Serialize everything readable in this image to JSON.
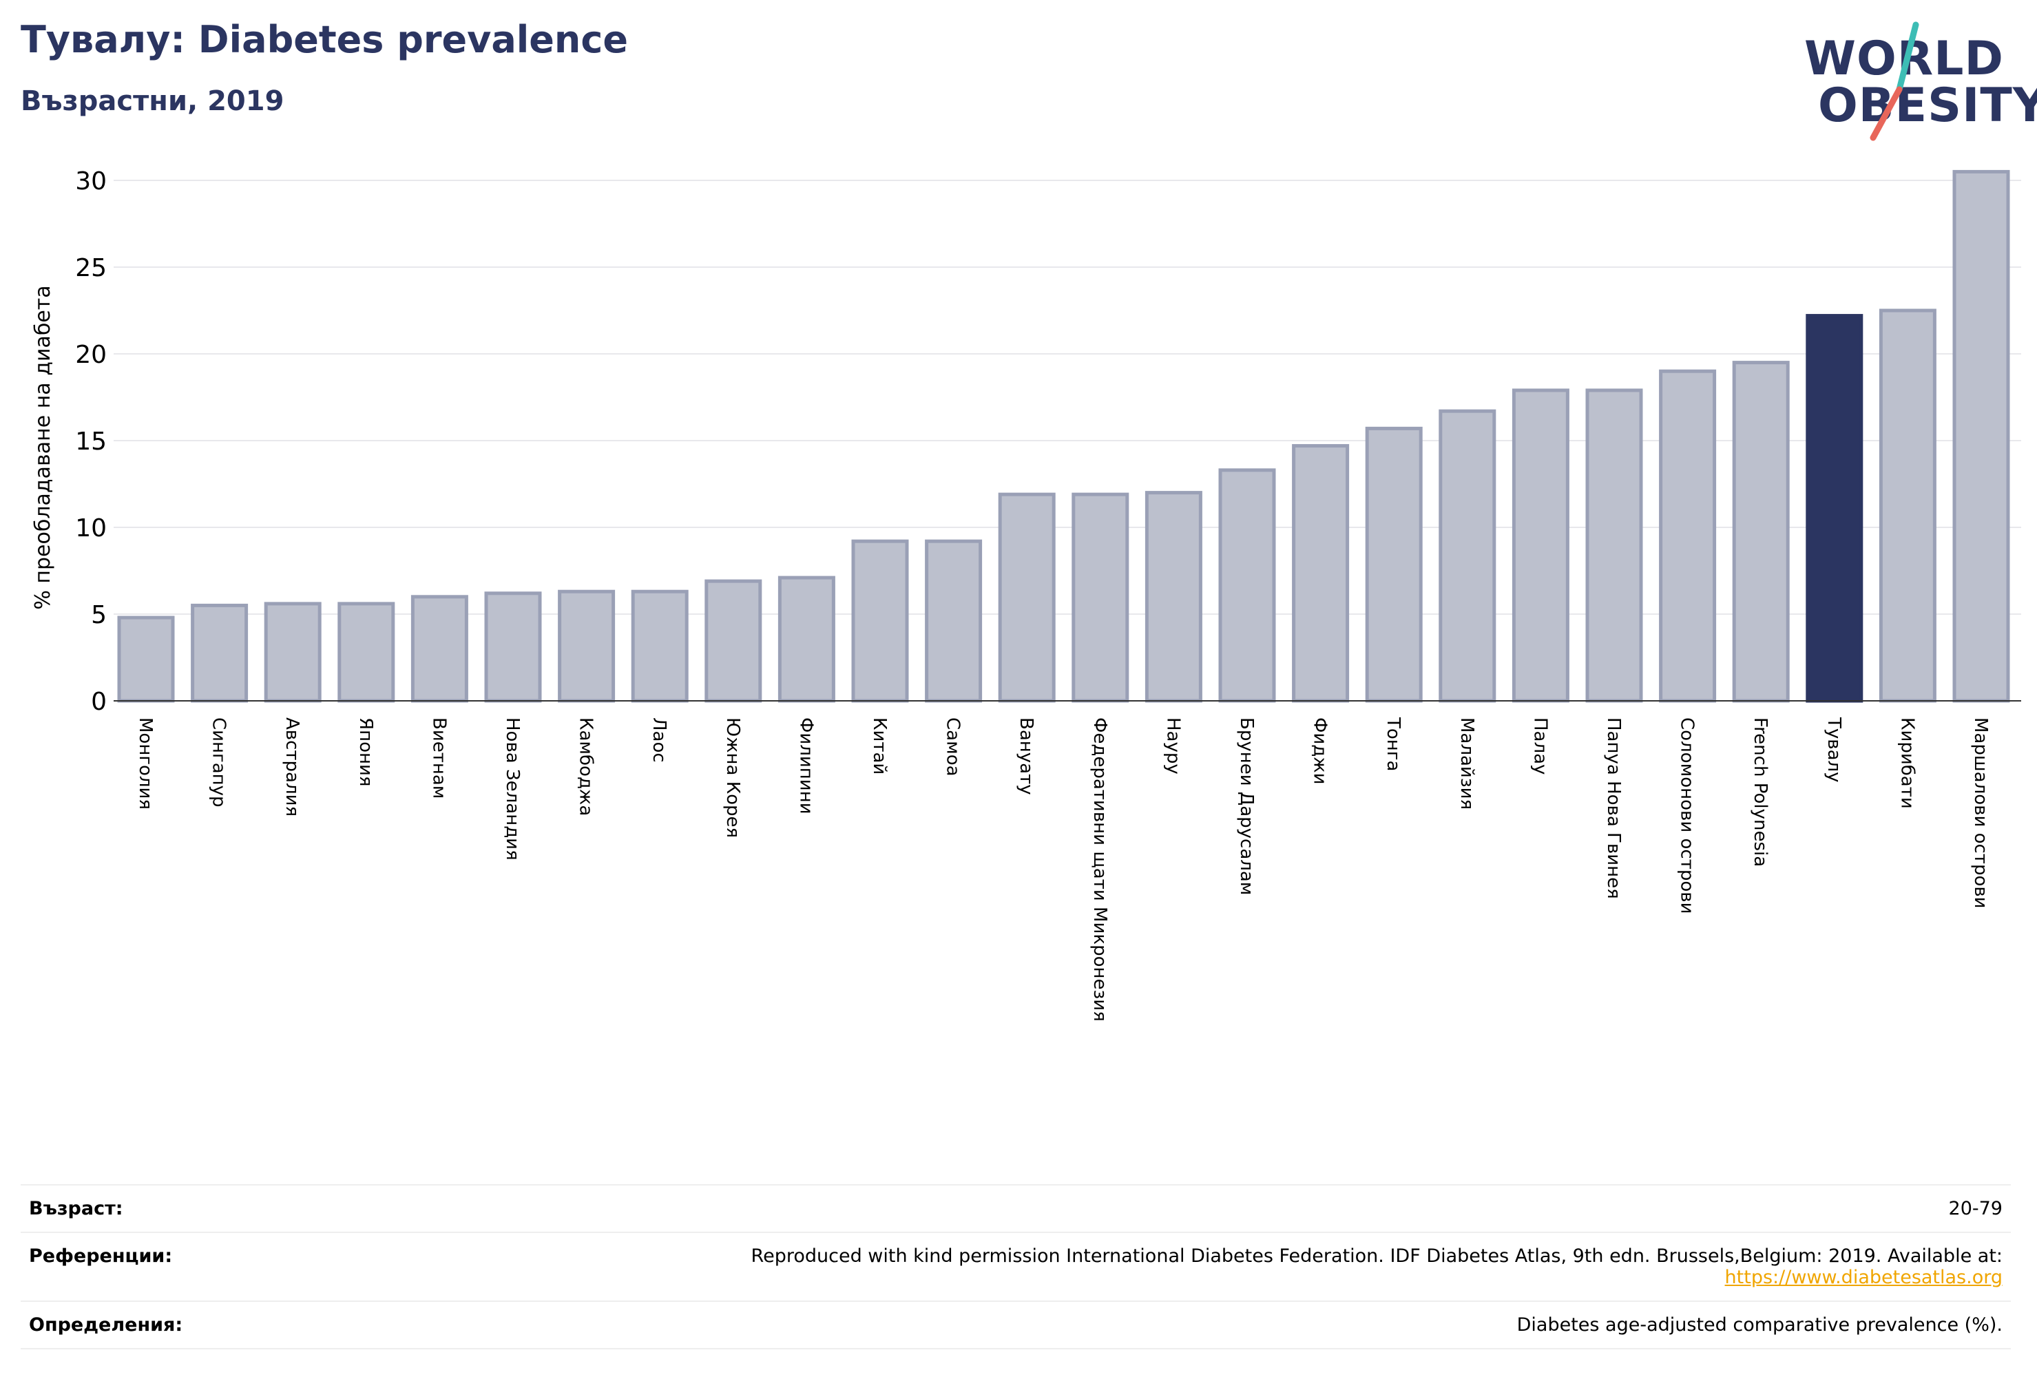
{
  "header": {
    "title": "Тувалу: Diabetes prevalence",
    "subtitle": "Възрастни, 2019"
  },
  "logo": {
    "line1": "WORLD",
    "line2": "OBESITY",
    "slash_colors": [
      "#3dbdb5",
      "#e8665a"
    ]
  },
  "chart_data": {
    "type": "bar",
    "ylabel": "% преобладаване на диабета",
    "ylim": [
      0,
      30.5
    ],
    "yticks": [
      0,
      5,
      10,
      15,
      20,
      25,
      30
    ],
    "grid": true,
    "highlight_category": "Тувалу",
    "colors": {
      "bar": "#bcc0cd",
      "bar_edge": "#9aa0b6",
      "highlight": "#2b3561"
    },
    "categories": [
      "Монголия",
      "Сингапур",
      "Австралия",
      "Япония",
      "Виетнам",
      "Нова Зеландия",
      "Камбоджа",
      "Лаос",
      "Южна Корея",
      "Филипини",
      "Китай",
      "Самоа",
      "Вануату",
      "Федеративни щати Микронезия",
      "Науру",
      "Брунеи Дарусалам",
      "Фиджи",
      "Тонга",
      "Малайзия",
      "Палау",
      "Папуа Нова Гвинея",
      "Соломонови острови",
      "French Polynesia",
      "Тувалу",
      "Кирибати",
      "Маршалови острови"
    ],
    "values": [
      4.8,
      5.5,
      5.6,
      5.6,
      6.0,
      6.2,
      6.3,
      6.3,
      6.9,
      7.1,
      9.2,
      9.2,
      11.9,
      11.9,
      12.0,
      13.3,
      14.7,
      15.7,
      16.7,
      17.9,
      17.9,
      19.0,
      19.5,
      22.2,
      22.5,
      30.5
    ]
  },
  "meta": {
    "age_label": "Възраст:",
    "age_value": "20-79",
    "refs_label": "Референции:",
    "refs_value": "Reproduced with kind permission International Diabetes Federation. IDF Diabetes Atlas, 9th edn. Brussels,Belgium: 2019. Available at:",
    "refs_link": "https://www.diabetesatlas.org",
    "defs_label": "Определения:",
    "defs_value": "Diabetes age-adjusted comparative prevalence (%)."
  }
}
